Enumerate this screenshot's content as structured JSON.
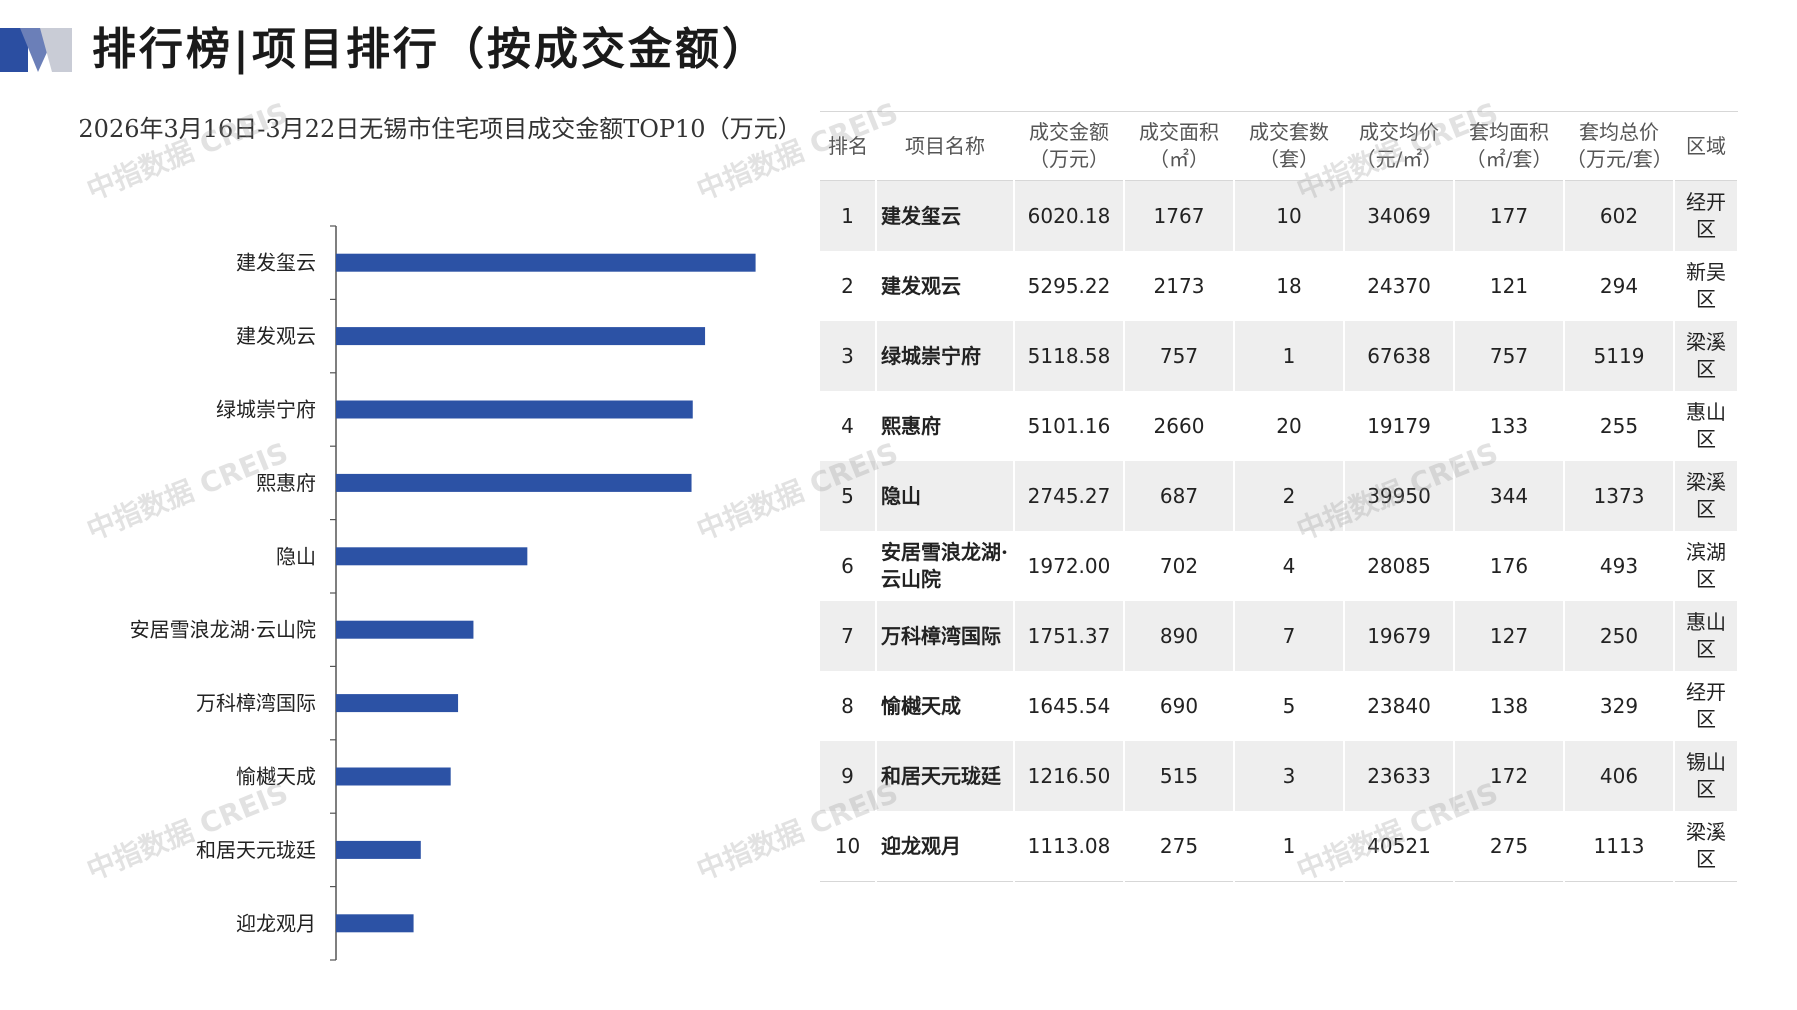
{
  "header": {
    "title": "排行榜|项目排行（按成交金额）",
    "accent_color": "#2b4ea1"
  },
  "chart_data": {
    "type": "bar",
    "orientation": "horizontal",
    "title": "2026年3月16日-3月22日无锡市住宅项目成交金额TOP10（万元）",
    "categories": [
      "建发玺云",
      "建发观云",
      "绿城崇宁府",
      "熙惠府",
      "隐山",
      "安居雪浪龙湖·云山院",
      "万科樟湾国际",
      "愉樾天成",
      "和居天元珑廷",
      "迎龙观月"
    ],
    "values": [
      6020.18,
      5295.22,
      5118.58,
      5101.16,
      2745.27,
      1972.0,
      1751.37,
      1645.54,
      1216.5,
      1113.08
    ],
    "bar_color": "#2c52a5",
    "xlim": [
      0,
      6600
    ],
    "grid": false
  },
  "table": {
    "headers": [
      "排名",
      "项目名称",
      "成交金额\n（万元）",
      "成交面积\n（㎡）",
      "成交套数\n（套）",
      "成交均价\n（元/㎡）",
      "套均面积\n（㎡/套）",
      "套均总价\n（万元/套）",
      "区域"
    ],
    "rows": [
      [
        "1",
        "建发玺云",
        "6020.18",
        "1767",
        "10",
        "34069",
        "177",
        "602",
        "经开区"
      ],
      [
        "2",
        "建发观云",
        "5295.22",
        "2173",
        "18",
        "24370",
        "121",
        "294",
        "新吴区"
      ],
      [
        "3",
        "绿城崇宁府",
        "5118.58",
        "757",
        "1",
        "67638",
        "757",
        "5119",
        "梁溪区"
      ],
      [
        "4",
        "熙惠府",
        "5101.16",
        "2660",
        "20",
        "19179",
        "133",
        "255",
        "惠山区"
      ],
      [
        "5",
        "隐山",
        "2745.27",
        "687",
        "2",
        "39950",
        "344",
        "1373",
        "梁溪区"
      ],
      [
        "6",
        "安居雪浪龙湖·云山院",
        "1972.00",
        "702",
        "4",
        "28085",
        "176",
        "493",
        "滨湖区"
      ],
      [
        "7",
        "万科樟湾国际",
        "1751.37",
        "890",
        "7",
        "19679",
        "127",
        "250",
        "惠山区"
      ],
      [
        "8",
        "愉樾天成",
        "1645.54",
        "690",
        "5",
        "23840",
        "138",
        "329",
        "经开区"
      ],
      [
        "9",
        "和居天元珑廷",
        "1216.50",
        "515",
        "3",
        "23633",
        "172",
        "406",
        "锡山区"
      ],
      [
        "10",
        "迎龙观月",
        "1113.08",
        "275",
        "1",
        "40521",
        "275",
        "1113",
        "梁溪区"
      ]
    ]
  },
  "watermark": "中指数据 CREIS"
}
